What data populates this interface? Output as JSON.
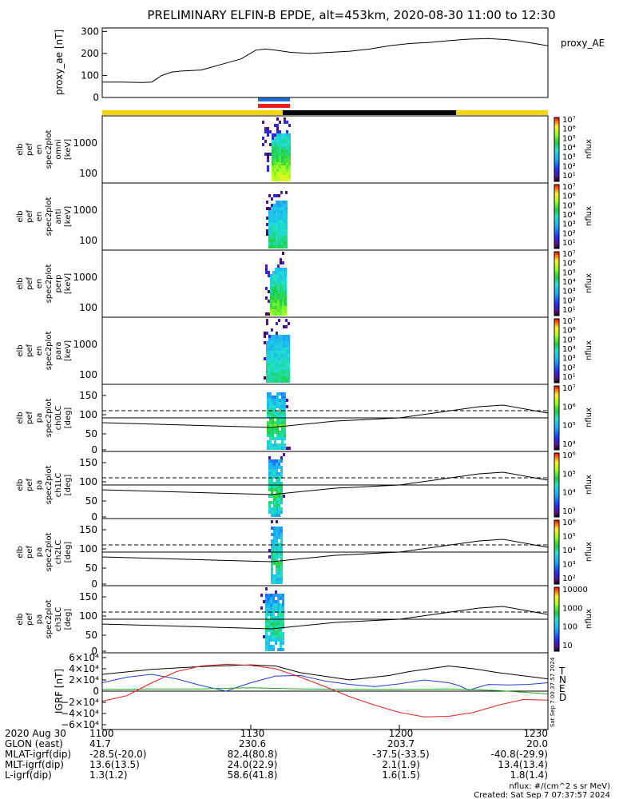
{
  "title": "PRELIMINARY ELFIN-B EPDE, alt=453km, 2020-08-30 11:00 to 12:30",
  "colors": {
    "fg": "#000000",
    "sunlight": "#f5d400",
    "shadow": "#000000",
    "bar_blue": "#1e6fe0",
    "bar_red": "#e8201a",
    "T": "#000000",
    "N": "#1f3fd0",
    "E": "#18a818",
    "D": "#e02020"
  },
  "chart_data": [
    {
      "type": "line",
      "id": "ae",
      "ylabel": "proxy_ae [nT]",
      "series_label": "proxy_AE",
      "ylim": [
        0,
        300
      ],
      "yticks": [
        "300",
        "200",
        "100",
        "0"
      ],
      "ytick_values": [
        300,
        200,
        100,
        0
      ],
      "x": [
        0,
        4,
        8,
        10,
        12,
        14,
        16,
        20,
        24,
        28,
        31,
        33,
        35,
        38,
        42,
        46,
        50,
        54,
        58,
        62,
        66,
        70,
        74,
        78,
        82,
        86,
        90
      ],
      "values": [
        70,
        70,
        68,
        70,
        100,
        115,
        120,
        125,
        150,
        175,
        215,
        220,
        215,
        205,
        200,
        205,
        210,
        220,
        235,
        245,
        250,
        258,
        265,
        268,
        262,
        250,
        235
      ]
    },
    {
      "type": "heatmap",
      "id": "omni",
      "ylabel": [
        "elb",
        "pef",
        "en",
        "spec2plot",
        "omni",
        "[keV]"
      ],
      "yticks": [
        "1000",
        "100"
      ],
      "colorbar_labels": [
        "10⁷",
        "10⁶",
        "10⁵",
        "10⁴",
        "10³",
        "10²",
        "10¹"
      ],
      "colorbar_title": "nflux"
    },
    {
      "type": "heatmap",
      "id": "anti",
      "ylabel": [
        "elb",
        "pef",
        "en",
        "spec2plot",
        "anti",
        "[keV]"
      ],
      "yticks": [
        "1000",
        "100"
      ],
      "colorbar_labels": [
        "10⁷",
        "10⁶",
        "10⁵",
        "10⁴",
        "10³",
        "10²",
        "10¹"
      ],
      "colorbar_title": "nflux"
    },
    {
      "type": "heatmap",
      "id": "perp",
      "ylabel": [
        "elb",
        "pef",
        "en",
        "spec2plot",
        "perp",
        "[keV]"
      ],
      "yticks": [
        "1000",
        "100"
      ],
      "colorbar_labels": [
        "10⁷",
        "10⁶",
        "10⁵",
        "10⁴",
        "10³",
        "10²",
        "10¹"
      ],
      "colorbar_title": "nflux"
    },
    {
      "type": "heatmap",
      "id": "para",
      "ylabel": [
        "elb",
        "pef",
        "en",
        "spec2plot",
        "para",
        "[keV]"
      ],
      "yticks": [
        "1000",
        "100"
      ],
      "colorbar_labels": [
        "10⁷",
        "10⁶",
        "10⁵",
        "10⁴",
        "10³",
        "10²",
        "10¹"
      ],
      "colorbar_title": "nflux"
    },
    {
      "type": "heatmap",
      "id": "ch0",
      "ylabel": [
        "elb",
        "pef",
        "pa",
        "spec2plot",
        "ch0LC",
        "[deg]"
      ],
      "yticks": [
        "150",
        "100",
        "50",
        "0"
      ],
      "colorbar_labels": [
        "10⁷",
        "10⁶",
        "10⁵",
        "10⁴"
      ],
      "colorbar_title": "nflux"
    },
    {
      "type": "heatmap",
      "id": "ch1",
      "ylabel": [
        "elb",
        "pef",
        "pa",
        "spec2plot",
        "ch1LC",
        "[deg]"
      ],
      "yticks": [
        "150",
        "100",
        "50",
        "0"
      ],
      "colorbar_labels": [
        "10⁶",
        "10⁵",
        "10⁴",
        "10³"
      ],
      "colorbar_title": "nflux"
    },
    {
      "type": "heatmap",
      "id": "ch2",
      "ylabel": [
        "elb",
        "pef",
        "pa",
        "spec2plot",
        "ch2LC",
        "[deg]"
      ],
      "yticks": [
        "150",
        "100",
        "50",
        "0"
      ],
      "colorbar_labels": [
        "10⁶",
        "10⁵",
        "10⁴",
        "10³",
        "10²"
      ],
      "colorbar_title": "nflux"
    },
    {
      "type": "heatmap",
      "id": "ch3",
      "ylabel": [
        "elb",
        "pef",
        "pa",
        "spec2plot",
        "ch3LC",
        "[deg]"
      ],
      "yticks": [
        "150",
        "100",
        "50",
        "0"
      ],
      "colorbar_labels": [
        "10000",
        "1000",
        "100",
        "10"
      ],
      "colorbar_title": "nflux"
    },
    {
      "type": "line",
      "id": "igrf",
      "ylabel": "IGRF [nT]",
      "ylim": [
        -60000,
        60000
      ],
      "yticks": [
        "6×10⁴",
        "4×10⁴",
        "2×10⁴",
        "0",
        "−2×10⁴",
        "−4×10⁴",
        "−6×10⁴"
      ],
      "ytick_values": [
        60000,
        40000,
        20000,
        0,
        -20000,
        -40000,
        -60000
      ],
      "legend": [
        "T",
        "N",
        "E",
        "D"
      ],
      "series": [
        {
          "name": "T",
          "x": [
            0,
            10,
            20,
            30,
            35,
            40,
            50,
            58,
            62,
            70,
            75,
            80,
            90
          ],
          "values": [
            30000,
            39000,
            44000,
            47000,
            45000,
            33000,
            20000,
            28000,
            35000,
            45000,
            40000,
            33000,
            22000
          ]
        },
        {
          "name": "N",
          "x": [
            0,
            5,
            10,
            15,
            20,
            25,
            30,
            35,
            40,
            45,
            50,
            55,
            60,
            65,
            70,
            72,
            74,
            78,
            82,
            86,
            90
          ],
          "values": [
            15000,
            25000,
            30000,
            22000,
            10000,
            0,
            15000,
            27000,
            28000,
            18000,
            12000,
            8000,
            13000,
            20000,
            15000,
            10000,
            2000,
            12000,
            11000,
            12000,
            15000
          ]
        },
        {
          "name": "E",
          "x": [
            0,
            10,
            20,
            30,
            40,
            50,
            60,
            70,
            80,
            90
          ],
          "values": [
            3000,
            4000,
            4000,
            6000,
            4000,
            3000,
            3000,
            4000,
            1000,
            -5000
          ]
        },
        {
          "name": "D",
          "x": [
            0,
            5,
            10,
            15,
            20,
            25,
            30,
            35,
            40,
            45,
            50,
            55,
            60,
            65,
            70,
            75,
            80,
            85,
            90
          ],
          "values": [
            -18000,
            -8000,
            15000,
            35000,
            45000,
            48000,
            46000,
            40000,
            25000,
            8000,
            -10000,
            -25000,
            -38000,
            -46000,
            -45000,
            -38000,
            -25000,
            -15000,
            -16000
          ]
        }
      ]
    }
  ],
  "xaxis": {
    "labels": [
      "1100",
      "1130",
      "1200",
      "1230"
    ]
  },
  "ephemeris": {
    "rows": [
      {
        "label": "2020 Aug 30",
        "values": [
          "1100",
          "1130",
          "1200",
          "1230"
        ]
      },
      {
        "label": "GLON (east)",
        "values": [
          "41.7",
          "230.6",
          "203.7",
          "20.0"
        ]
      },
      {
        "label": "MLAT-igrf(dip)",
        "values": [
          "-28.5(-20.0)",
          "82.4(80.8)",
          "-37.5(-33.5)",
          "-40.8(-29.9)"
        ]
      },
      {
        "label": "MLT-igrf(dip)",
        "values": [
          "13.6(13.5)",
          "24.0(22.9)",
          "2.1(1.9)",
          "13.4(13.4)"
        ]
      },
      {
        "label": "L-igrf(dip)",
        "values": [
          "1.3(1.2)",
          "58.6(41.8)",
          "1.6(1.5)",
          "1.8(1.4)"
        ]
      }
    ]
  },
  "footer": {
    "units": "nflux: #/(cm^2 s sr MeV)",
    "created": "Created: Sat Sep  7 07:37:57 2024",
    "side_stamp": "Sat Sep  7 00:37:57 2024"
  }
}
